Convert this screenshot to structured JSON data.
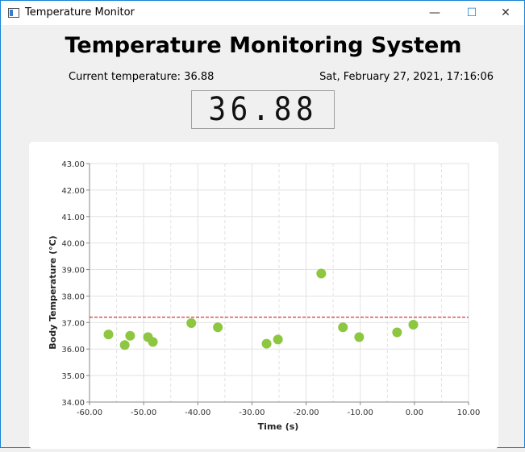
{
  "window": {
    "title": "Temperature Monitor",
    "minimize_glyph": "—",
    "maximize_glyph": "☐",
    "close_glyph": "✕",
    "border_color": "#1883d7"
  },
  "main": {
    "heading": "Temperature Monitoring System",
    "current_temperature_label": "Current temperature: 36.88",
    "datetime": "Sat, February 27, 2021, 17:16:06",
    "lcd_value": "36.88"
  },
  "chart_data": {
    "type": "scatter",
    "xlabel": "Time (s)",
    "ylabel": "Body Temperature (°C)",
    "xlim": [
      -60,
      10
    ],
    "ylim": [
      34,
      43
    ],
    "x_ticks": [
      -60,
      -50,
      -40,
      -30,
      -20,
      -10,
      0,
      10
    ],
    "x_tick_labels": [
      "-60.00",
      "-50.00",
      "-40.00",
      "-30.00",
      "-20.00",
      "-10.00",
      "0.00",
      "10.00"
    ],
    "y_ticks": [
      34,
      35,
      36,
      37,
      38,
      39,
      40,
      41,
      42,
      43
    ],
    "y_tick_labels": [
      "34.00",
      "35.00",
      "36.00",
      "37.00",
      "38.00",
      "39.00",
      "40.00",
      "41.00",
      "42.00",
      "43.00"
    ],
    "grid": true,
    "threshold": 37.2,
    "threshold_color": "#cc0000",
    "point_color": "#8dc63f",
    "points": [
      {
        "x": -56.5,
        "y": 36.55
      },
      {
        "x": -53.5,
        "y": 36.15
      },
      {
        "x": -52.5,
        "y": 36.5
      },
      {
        "x": -49.2,
        "y": 36.45
      },
      {
        "x": -48.3,
        "y": 36.27
      },
      {
        "x": -41.2,
        "y": 36.98
      },
      {
        "x": -36.3,
        "y": 36.82
      },
      {
        "x": -27.3,
        "y": 36.2
      },
      {
        "x": -25.2,
        "y": 36.36
      },
      {
        "x": -17.2,
        "y": 38.85
      },
      {
        "x": -13.2,
        "y": 36.82
      },
      {
        "x": -10.2,
        "y": 36.45
      },
      {
        "x": -3.2,
        "y": 36.63
      },
      {
        "x": -0.2,
        "y": 36.92
      }
    ]
  }
}
